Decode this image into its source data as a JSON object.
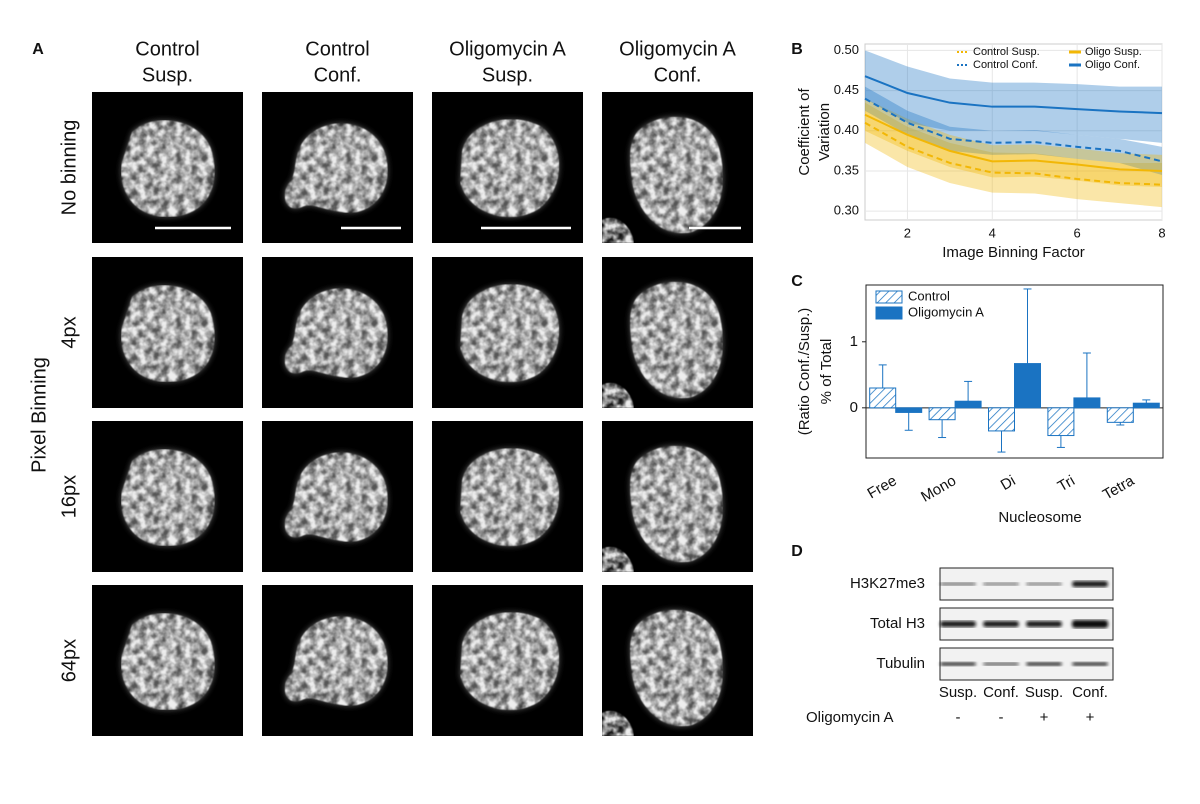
{
  "panel_a": {
    "label": "A",
    "columns": [
      [
        "Control",
        "Susp."
      ],
      [
        "Control",
        "Conf."
      ],
      [
        "Oligomycin A",
        "Susp."
      ],
      [
        "Oligomycin A",
        "Conf."
      ]
    ],
    "rows": [
      "No binning",
      "4px",
      "16px",
      "64px"
    ],
    "row_axis_title": "Pixel Binning"
  },
  "chart_data": [
    {
      "type": "line",
      "panel_label": "B",
      "y_label": [
        "Coefficient of",
        "Variation"
      ],
      "x_label": "Image Binning Factor",
      "x": [
        1,
        2,
        3,
        4,
        5,
        6,
        7,
        8
      ],
      "xlim": [
        1,
        8
      ],
      "xticks": [
        2,
        4,
        6,
        8
      ],
      "ylim": [
        0.289,
        0.508
      ],
      "yticks": [
        {
          "value": 0.3,
          "label": "0.30"
        },
        0.35,
        {
          "value": 0.4,
          "label": "0.40"
        },
        0.45,
        {
          "value": 0.5,
          "label": "0.50"
        }
      ],
      "grid": true,
      "legend": "top-right",
      "series": [
        {
          "name": "Control Susp.",
          "color": "#f2b705",
          "line_style": "dashed",
          "values": [
            0.41,
            0.38,
            0.36,
            0.348,
            0.347,
            0.34,
            0.335,
            0.333
          ],
          "lower": [
            0.385,
            0.355,
            0.335,
            0.323,
            0.322,
            0.315,
            0.31,
            0.305
          ],
          "upper": [
            0.435,
            0.405,
            0.385,
            0.373,
            0.372,
            0.365,
            0.36,
            0.36
          ]
        },
        {
          "name": "Control Conf.",
          "color": "#1a73c2",
          "line_style": "dashed",
          "values": [
            0.44,
            0.41,
            0.39,
            0.385,
            0.386,
            0.38,
            0.375,
            0.362
          ],
          "lower": [
            0.425,
            0.395,
            0.375,
            0.37,
            0.371,
            0.365,
            0.36,
            0.345
          ],
          "upper": [
            0.455,
            0.425,
            0.405,
            0.4,
            0.401,
            0.395,
            0.39,
            0.38
          ]
        },
        {
          "name": "Oligo Susp.",
          "color": "#f2b705",
          "line_style": "solid",
          "values": [
            0.42,
            0.395,
            0.375,
            0.362,
            0.363,
            0.358,
            0.352,
            0.35
          ],
          "lower": [
            0.4,
            0.375,
            0.355,
            0.342,
            0.343,
            0.338,
            0.332,
            0.33
          ],
          "upper": [
            0.44,
            0.415,
            0.395,
            0.382,
            0.383,
            0.378,
            0.372,
            0.37
          ]
        },
        {
          "name": "Oligo Conf.",
          "color": "#1a73c2",
          "line_style": "solid",
          "values": [
            0.468,
            0.447,
            0.435,
            0.43,
            0.43,
            0.427,
            0.424,
            0.422
          ],
          "lower": [
            0.44,
            0.41,
            0.4,
            0.4,
            0.4,
            0.395,
            0.39,
            0.385
          ],
          "upper": [
            0.5,
            0.48,
            0.465,
            0.46,
            0.46,
            0.458,
            0.455,
            0.455
          ]
        }
      ]
    },
    {
      "type": "bar",
      "panel_label": "C",
      "y_label": [
        "(Ratio Conf./Susp.)",
        "% of Total"
      ],
      "x_label": "Nucleosome",
      "categories": [
        "Free",
        "Mono",
        "Di",
        "Tri",
        "Tetra"
      ],
      "ylim": [
        -0.76,
        1.86
      ],
      "yticks": [
        0,
        1
      ],
      "legend": "top-left",
      "series": [
        {
          "name": "Control",
          "color": "#1a73c2",
          "pattern": "hatch",
          "values": [
            0.3,
            -0.18,
            -0.35,
            -0.42,
            -0.22
          ],
          "errors": [
            0.35,
            0.27,
            0.32,
            0.18,
            0.04
          ]
        },
        {
          "name": "Oligomycin A",
          "color": "#1a73c2",
          "pattern": "solid",
          "values": [
            -0.07,
            0.1,
            0.67,
            0.15,
            0.07
          ],
          "errors": [
            0.27,
            0.3,
            1.13,
            0.68,
            0.05
          ]
        }
      ]
    }
  ],
  "panel_d": {
    "label": "D",
    "rows": [
      "H3K27me3",
      "Total H3",
      "Tubulin"
    ],
    "lanes": [
      "Susp.",
      "Conf.",
      "Susp.",
      "Conf."
    ],
    "treatment": {
      "name": "Oligomycin A",
      "values": [
        "-",
        "-",
        "+",
        "+"
      ]
    }
  }
}
